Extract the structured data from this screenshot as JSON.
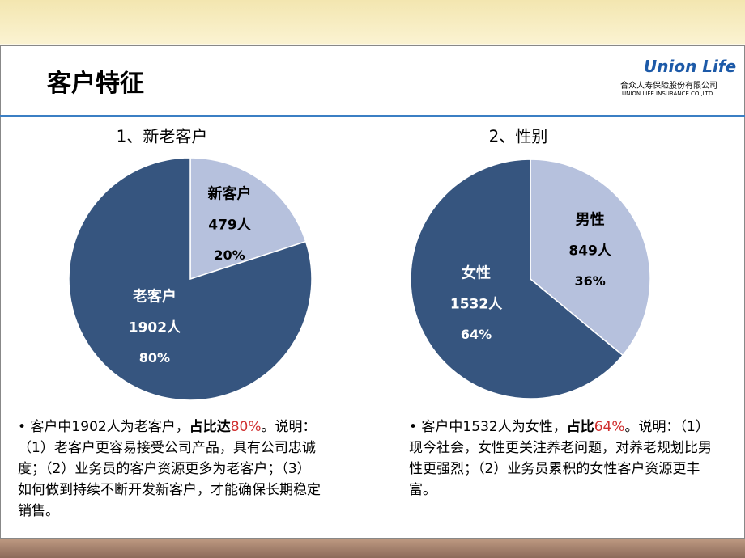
{
  "header": {
    "title": "客户特征",
    "logo": "Union Life",
    "company_cn": "合众人寿保险股份有限公司",
    "company_en": "UNION LIFE INSURANCE CO.,LTD."
  },
  "chart_data": [
    {
      "type": "pie",
      "title": "1、新老客户",
      "categories": [
        "新客户",
        "老客户"
      ],
      "values": [
        20,
        80
      ],
      "value_labels": [
        "20%",
        "80%"
      ],
      "count_labels": [
        "479人",
        "1902人"
      ],
      "colors": [
        "#b6c1dd",
        "#36557f"
      ]
    },
    {
      "type": "pie",
      "title": "2、性别",
      "categories": [
        "男性",
        "女性"
      ],
      "values": [
        36,
        64
      ],
      "value_labels": [
        "36%",
        "64%"
      ],
      "count_labels": [
        "849人",
        "1532人"
      ],
      "colors": [
        "#b6c1dd",
        "#36557f"
      ]
    }
  ],
  "notes": [
    {
      "parts": [
        "•  客户中1902人为老客户，",
        "占比达",
        "80%",
        "。说明：（1）老客户更容易接受公司产品，具有公司忠诚度；（2）业务员的客户资源更多为老客户；（3）如何做到持续不断开发新客户，才能确保长期稳定销售。"
      ]
    },
    {
      "parts": [
        "• 客户中1532人为女性，",
        "占比",
        "64%",
        "。说明：（1）现今社会，女性更关注养老问题，对养老规划比男性更强烈；（2）业务员累积的女性客户资源更丰富。"
      ]
    }
  ]
}
